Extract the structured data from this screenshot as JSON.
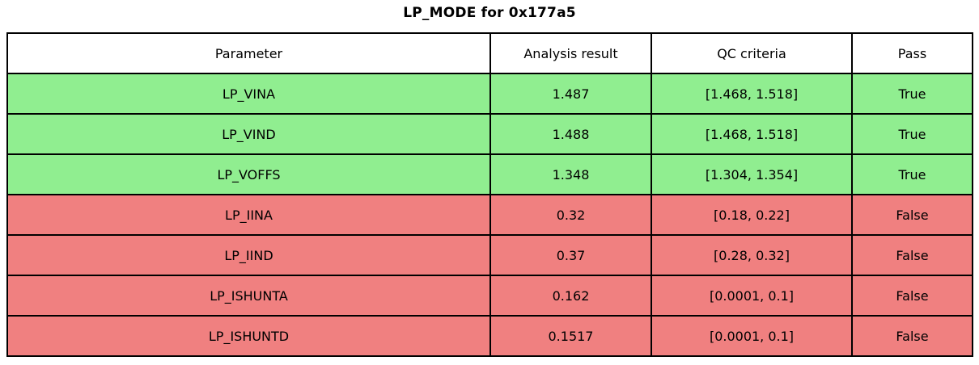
{
  "title": "LP_MODE for 0x177a5",
  "colors": {
    "pass_row": "#90ee90",
    "fail_row": "#f08080",
    "header_bg": "#ffffff",
    "border": "#000000",
    "text": "#000000"
  },
  "table": {
    "columns": [
      "Parameter",
      "Analysis result",
      "QC criteria",
      "Pass"
    ],
    "rows": [
      {
        "parameter": "LP_VINA",
        "analysis_result": "1.487",
        "qc_criteria": "[1.468, 1.518]",
        "pass": "True",
        "status": "pass"
      },
      {
        "parameter": "LP_VIND",
        "analysis_result": "1.488",
        "qc_criteria": "[1.468, 1.518]",
        "pass": "True",
        "status": "pass"
      },
      {
        "parameter": "LP_VOFFS",
        "analysis_result": "1.348",
        "qc_criteria": "[1.304, 1.354]",
        "pass": "True",
        "status": "pass"
      },
      {
        "parameter": "LP_IINA",
        "analysis_result": "0.32",
        "qc_criteria": "[0.18, 0.22]",
        "pass": "False",
        "status": "fail"
      },
      {
        "parameter": "LP_IIND",
        "analysis_result": "0.37",
        "qc_criteria": "[0.28, 0.32]",
        "pass": "False",
        "status": "fail"
      },
      {
        "parameter": "LP_ISHUNTA",
        "analysis_result": "0.162",
        "qc_criteria": "[0.0001, 0.1]",
        "pass": "False",
        "status": "fail"
      },
      {
        "parameter": "LP_ISHUNTD",
        "analysis_result": "0.1517",
        "qc_criteria": "[0.0001, 0.1]",
        "pass": "False",
        "status": "fail"
      }
    ]
  },
  "chart_data": {
    "type": "table",
    "title": "LP_MODE for 0x177a5",
    "columns": [
      "Parameter",
      "Analysis result",
      "QC criteria",
      "Pass"
    ],
    "rows": [
      [
        "LP_VINA",
        1.487,
        "[1.468, 1.518]",
        true
      ],
      [
        "LP_VIND",
        1.488,
        "[1.468, 1.518]",
        true
      ],
      [
        "LP_VOFFS",
        1.348,
        "[1.304, 1.354]",
        true
      ],
      [
        "LP_IINA",
        0.32,
        "[0.18, 0.22]",
        false
      ],
      [
        "LP_IIND",
        0.37,
        "[0.28, 0.32]",
        false
      ],
      [
        "LP_ISHUNTA",
        0.162,
        "[0.0001, 0.1]",
        false
      ],
      [
        "LP_ISHUNTD",
        0.1517,
        "[0.0001, 0.1]",
        false
      ]
    ],
    "row_colors": [
      "#90ee90",
      "#90ee90",
      "#90ee90",
      "#f08080",
      "#f08080",
      "#f08080",
      "#f08080"
    ],
    "legend_position": "none",
    "grid": true
  }
}
